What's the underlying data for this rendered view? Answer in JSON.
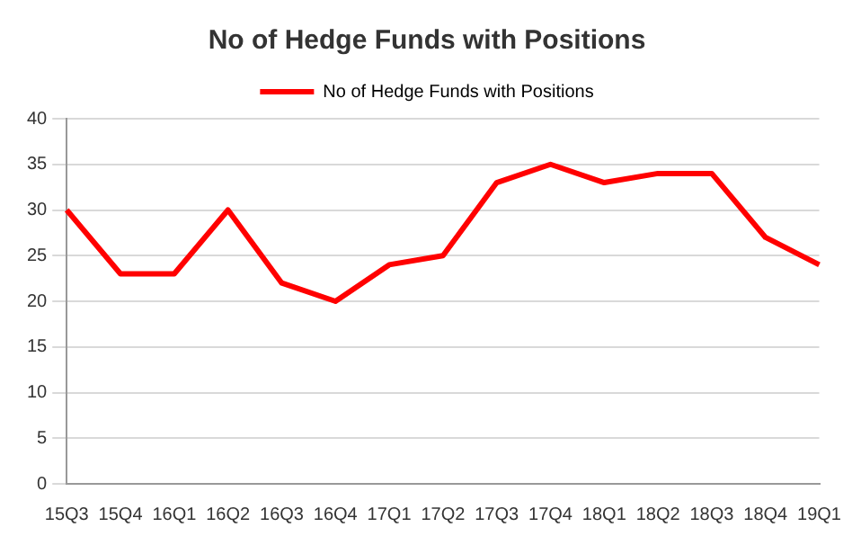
{
  "chart_data": {
    "type": "line",
    "title": "No of Hedge Funds with Positions",
    "categories": [
      "15Q3",
      "15Q4",
      "16Q1",
      "16Q2",
      "16Q3",
      "16Q4",
      "17Q1",
      "17Q2",
      "17Q3",
      "17Q4",
      "18Q1",
      "18Q2",
      "18Q3",
      "18Q4",
      "19Q1"
    ],
    "series": [
      {
        "name": "No of Hedge Funds with Positions",
        "color": "#ff0000",
        "values": [
          30,
          23,
          23,
          30,
          22,
          20,
          24,
          25,
          33,
          35,
          33,
          34,
          34,
          27,
          24
        ]
      }
    ],
    "ylim": [
      0,
      40
    ],
    "yticks": [
      0,
      5,
      10,
      15,
      20,
      25,
      30,
      35,
      40
    ],
    "grid": "y",
    "legend": "top",
    "marker": "none",
    "line_style": "solid"
  }
}
